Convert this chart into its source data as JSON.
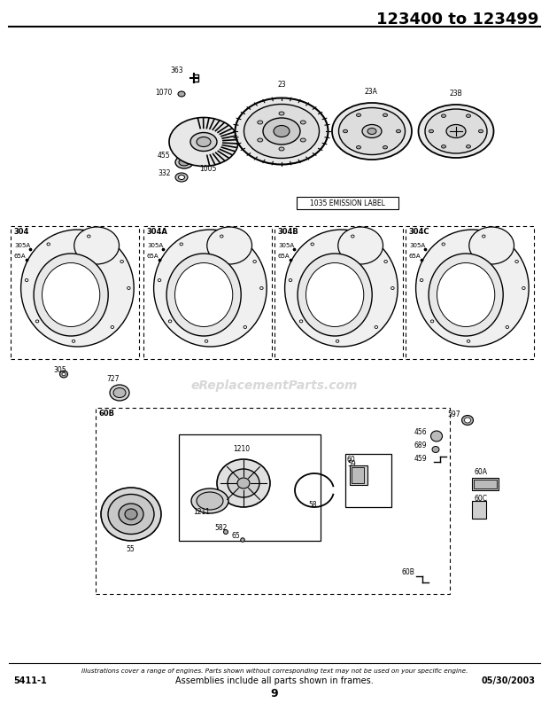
{
  "title": "123400 to 123499",
  "bg_color": "#ffffff",
  "footer_italic": "Illustrations cover a range of engines. Parts shown without corresponding text may not be used on your specific engine.",
  "footer_left": "5411-1",
  "footer_center": "Assemblies include all parts shown in frames.",
  "footer_right": "05/30/2003",
  "page_number": "9",
  "emission_label": "1035 EMISSION LABEL",
  "watermark": "eReplacementParts.com",
  "middle_box_labels": [
    "304",
    "304A",
    "304B",
    "304C"
  ]
}
